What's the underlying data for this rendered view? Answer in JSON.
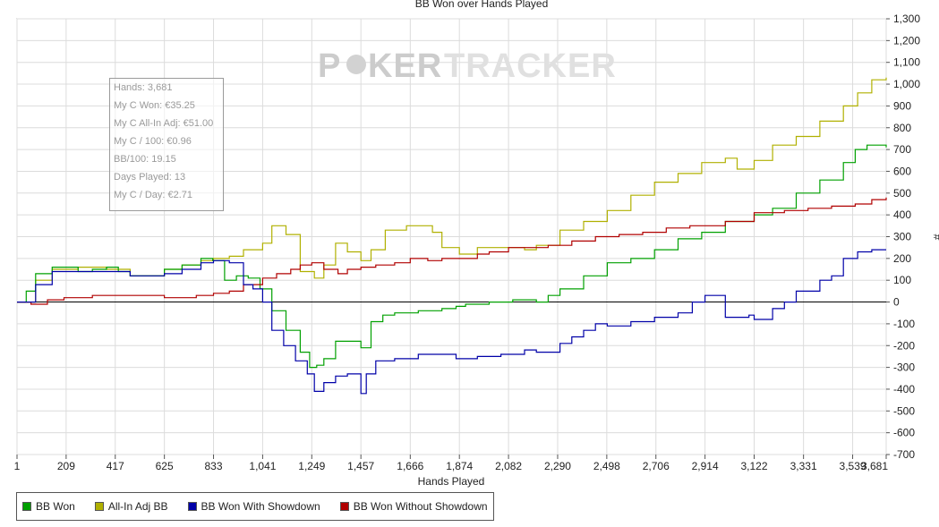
{
  "chart_data": {
    "type": "line",
    "title": "BB Won over Hands Played",
    "xlabel": "Hands Played",
    "ylabel": "#",
    "xlim": [
      1,
      3681
    ],
    "ylim": [
      -700,
      1300
    ],
    "grid": true,
    "legend_position": "bottom-left",
    "x_ticks": [
      "1",
      "209",
      "417",
      "625",
      "833",
      "1,041",
      "1,249",
      "1,457",
      "1,666",
      "1,874",
      "2,082",
      "2,290",
      "2,498",
      "2,706",
      "2,914",
      "3,122",
      "3,331",
      "3,539",
      "3,681"
    ],
    "y_ticks": [
      "1,300",
      "1,200",
      "1,100",
      "1,000",
      "900",
      "800",
      "700",
      "600",
      "500",
      "400",
      "300",
      "200",
      "100",
      "0",
      "-100",
      "-200",
      "-300",
      "-400",
      "-500",
      "-600",
      "-700"
    ],
    "series": [
      {
        "name": "BB Won",
        "color": "#00a000",
        "x": [
          1,
          40,
          80,
          150,
          200,
          260,
          320,
          380,
          430,
          480,
          560,
          625,
          700,
          780,
          830,
          880,
          930,
          980,
          1030,
          1080,
          1140,
          1200,
          1240,
          1270,
          1300,
          1350,
          1400,
          1457,
          1500,
          1550,
          1600,
          1700,
          1800,
          1860,
          1900,
          2000,
          2100,
          2200,
          2250,
          2300,
          2400,
          2500,
          2600,
          2700,
          2800,
          2900,
          3000,
          3122,
          3200,
          3300,
          3400,
          3500,
          3550,
          3600,
          3681
        ],
        "y": [
          0,
          50,
          130,
          160,
          160,
          140,
          150,
          160,
          140,
          120,
          120,
          150,
          170,
          200,
          190,
          100,
          120,
          110,
          60,
          -40,
          -130,
          -230,
          -300,
          -290,
          -260,
          -180,
          -180,
          -210,
          -90,
          -60,
          -50,
          -40,
          -30,
          -20,
          -10,
          0,
          10,
          0,
          30,
          60,
          120,
          180,
          200,
          240,
          290,
          320,
          370,
          400,
          430,
          500,
          560,
          640,
          700,
          720,
          710
        ]
      },
      {
        "name": "All-In Adj BB",
        "color": "#b0b000",
        "x": [
          1,
          80,
          150,
          260,
          380,
          480,
          625,
          700,
          780,
          833,
          900,
          960,
          1041,
          1080,
          1140,
          1200,
          1260,
          1300,
          1350,
          1400,
          1457,
          1500,
          1560,
          1650,
          1700,
          1760,
          1800,
          1874,
          1950,
          2082,
          2150,
          2200,
          2300,
          2400,
          2500,
          2600,
          2700,
          2800,
          2900,
          3000,
          3050,
          3122,
          3200,
          3300,
          3400,
          3500,
          3560,
          3620,
          3681
        ],
        "y": [
          0,
          100,
          150,
          160,
          150,
          120,
          150,
          170,
          190,
          200,
          210,
          240,
          270,
          350,
          310,
          140,
          110,
          170,
          270,
          230,
          190,
          240,
          330,
          350,
          350,
          320,
          250,
          220,
          250,
          250,
          240,
          260,
          330,
          370,
          420,
          490,
          550,
          590,
          640,
          660,
          610,
          650,
          720,
          760,
          830,
          900,
          960,
          1020,
          1030
        ]
      },
      {
        "name": "BB Won With Showdown",
        "color": "#0000a8",
        "x": [
          1,
          80,
          150,
          260,
          380,
          480,
          625,
          700,
          780,
          833,
          900,
          960,
          1000,
          1041,
          1080,
          1130,
          1180,
          1230,
          1260,
          1300,
          1350,
          1400,
          1457,
          1480,
          1520,
          1600,
          1700,
          1800,
          1860,
          1950,
          2050,
          2150,
          2200,
          2300,
          2350,
          2400,
          2450,
          2500,
          2600,
          2700,
          2800,
          2860,
          2914,
          3000,
          3050,
          3100,
          3122,
          3200,
          3250,
          3300,
          3400,
          3450,
          3500,
          3560,
          3620,
          3681
        ],
        "y": [
          0,
          80,
          140,
          140,
          140,
          120,
          130,
          150,
          180,
          190,
          180,
          80,
          60,
          0,
          -130,
          -200,
          -270,
          -330,
          -410,
          -370,
          -340,
          -330,
          -420,
          -330,
          -270,
          -260,
          -240,
          -240,
          -260,
          -250,
          -240,
          -220,
          -230,
          -190,
          -160,
          -130,
          -100,
          -110,
          -90,
          -70,
          -50,
          0,
          30,
          -70,
          -70,
          -60,
          -80,
          -30,
          0,
          50,
          100,
          120,
          200,
          230,
          240,
          240
        ]
      },
      {
        "name": "BB Won Without Showdown",
        "color": "#b00000",
        "x": [
          1,
          60,
          130,
          200,
          260,
          320,
          380,
          480,
          560,
          625,
          700,
          760,
          833,
          900,
          960,
          1041,
          1100,
          1160,
          1200,
          1249,
          1300,
          1360,
          1400,
          1457,
          1520,
          1600,
          1666,
          1740,
          1800,
          1874,
          1950,
          2000,
          2082,
          2150,
          2250,
          2350,
          2450,
          2550,
          2650,
          2750,
          2850,
          2914,
          3000,
          3122,
          3250,
          3350,
          3450,
          3550,
          3620,
          3681
        ],
        "y": [
          0,
          -10,
          10,
          20,
          20,
          30,
          30,
          30,
          30,
          20,
          20,
          30,
          40,
          50,
          80,
          110,
          130,
          150,
          170,
          180,
          150,
          130,
          150,
          160,
          170,
          180,
          200,
          190,
          200,
          200,
          220,
          230,
          250,
          250,
          260,
          280,
          300,
          310,
          320,
          340,
          350,
          350,
          370,
          410,
          420,
          430,
          440,
          450,
          470,
          480
        ]
      }
    ]
  },
  "watermark": {
    "left": "P",
    "right": "KER",
    "brand": "TRACKER",
    "left_color": "#cccccc",
    "right_color": "#d9d9d9"
  },
  "stats": [
    "Hands: 3,681",
    "My C Won: €35.25",
    "My C All-In Adj: €51.00",
    "My C / 100: €0.96",
    "BB/100: 19.15",
    "Days Played: 13",
    "My C / Day: €2.71"
  ],
  "legend": [
    "BB Won",
    "All-In Adj BB",
    "BB Won With Showdown",
    "BB Won Without Showdown"
  ]
}
